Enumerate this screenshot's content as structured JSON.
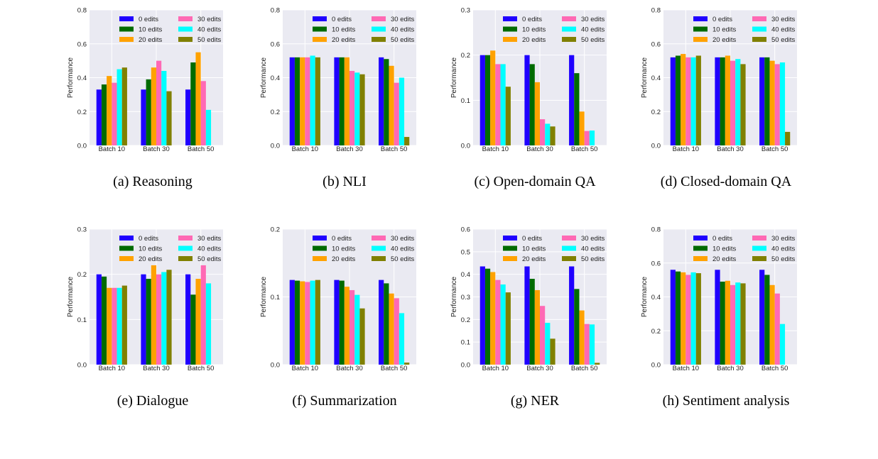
{
  "colors": [
    "#1f00ff",
    "#006b00",
    "#ffa200",
    "#ff69b4",
    "#00ffff",
    "#808000"
  ],
  "chart_data": [
    {
      "type": "bar",
      "caption": "(a) Reasoning",
      "ylabel": "Performance",
      "ylim": [
        0,
        0.8
      ],
      "yticks": [
        "0.0",
        "0.2",
        "0.4",
        "0.6",
        "0.8"
      ],
      "categories": [
        "Batch 10",
        "Batch 30",
        "Batch 50"
      ],
      "legend": "top-right",
      "grid": true,
      "series": [
        {
          "name": "0 edits",
          "values": [
            0.33,
            0.33,
            0.33
          ]
        },
        {
          "name": "10 edits",
          "values": [
            0.36,
            0.39,
            0.49
          ]
        },
        {
          "name": "20 edits",
          "values": [
            0.41,
            0.46,
            0.55
          ]
        },
        {
          "name": "30 edits",
          "values": [
            0.37,
            0.5,
            0.38
          ]
        },
        {
          "name": "40 edits",
          "values": [
            0.45,
            0.44,
            0.21
          ]
        },
        {
          "name": "50 edits",
          "values": [
            0.46,
            0.32,
            0.0
          ]
        }
      ]
    },
    {
      "type": "bar",
      "caption": "(b) NLI",
      "ylabel": "Performance",
      "ylim": [
        0,
        0.8
      ],
      "yticks": [
        "0.0",
        "0.2",
        "0.4",
        "0.6",
        "0.8"
      ],
      "categories": [
        "Batch 10",
        "Batch 30",
        "Batch 50"
      ],
      "legend": "top-right",
      "grid": true,
      "series": [
        {
          "name": "0 edits",
          "values": [
            0.52,
            0.52,
            0.52
          ]
        },
        {
          "name": "10 edits",
          "values": [
            0.52,
            0.52,
            0.51
          ]
        },
        {
          "name": "20 edits",
          "values": [
            0.52,
            0.52,
            0.47
          ]
        },
        {
          "name": "30 edits",
          "values": [
            0.52,
            0.44,
            0.37
          ]
        },
        {
          "name": "40 edits",
          "values": [
            0.53,
            0.43,
            0.4
          ]
        },
        {
          "name": "50 edits",
          "values": [
            0.52,
            0.42,
            0.05
          ]
        }
      ]
    },
    {
      "type": "bar",
      "caption": "(c) Open-domain QA",
      "ylabel": "Performance",
      "ylim": [
        0,
        0.3
      ],
      "yticks": [
        "0.0",
        "0.1",
        "0.2",
        "0.3"
      ],
      "categories": [
        "Batch 10",
        "Batch 30",
        "Batch 50"
      ],
      "legend": "top-right",
      "grid": true,
      "series": [
        {
          "name": "0 edits",
          "values": [
            0.2,
            0.2,
            0.2
          ]
        },
        {
          "name": "10 edits",
          "values": [
            0.2,
            0.18,
            0.16
          ]
        },
        {
          "name": "20 edits",
          "values": [
            0.21,
            0.14,
            0.075
          ]
        },
        {
          "name": "30 edits",
          "values": [
            0.18,
            0.058,
            0.032
          ]
        },
        {
          "name": "40 edits",
          "values": [
            0.18,
            0.048,
            0.033
          ]
        },
        {
          "name": "50 edits",
          "values": [
            0.13,
            0.042,
            0.0
          ]
        }
      ]
    },
    {
      "type": "bar",
      "caption": "(d) Closed-domain QA",
      "ylabel": "Performance",
      "ylim": [
        0,
        0.8
      ],
      "yticks": [
        "0.0",
        "0.2",
        "0.4",
        "0.6",
        "0.8"
      ],
      "categories": [
        "Batch 10",
        "Batch 30",
        "Batch 50"
      ],
      "legend": "top-right",
      "grid": true,
      "series": [
        {
          "name": "0 edits",
          "values": [
            0.52,
            0.52,
            0.52
          ]
        },
        {
          "name": "10 edits",
          "values": [
            0.53,
            0.52,
            0.52
          ]
        },
        {
          "name": "20 edits",
          "values": [
            0.54,
            0.53,
            0.5
          ]
        },
        {
          "name": "30 edits",
          "values": [
            0.52,
            0.5,
            0.48
          ]
        },
        {
          "name": "40 edits",
          "values": [
            0.52,
            0.51,
            0.49
          ]
        },
        {
          "name": "50 edits",
          "values": [
            0.53,
            0.48,
            0.08
          ]
        }
      ]
    },
    {
      "type": "bar",
      "caption": "(e) Dialogue",
      "ylabel": "Performance",
      "ylim": [
        0,
        0.3
      ],
      "yticks": [
        "0.0",
        "0.1",
        "0.2",
        "0.3"
      ],
      "categories": [
        "Batch 10",
        "Batch 30",
        "Batch 50"
      ],
      "legend": "top-right",
      "grid": true,
      "series": [
        {
          "name": "0 edits",
          "values": [
            0.2,
            0.2,
            0.2
          ]
        },
        {
          "name": "10 edits",
          "values": [
            0.195,
            0.19,
            0.155
          ]
        },
        {
          "name": "20 edits",
          "values": [
            0.17,
            0.22,
            0.19
          ]
        },
        {
          "name": "30 edits",
          "values": [
            0.17,
            0.2,
            0.22
          ]
        },
        {
          "name": "40 edits",
          "values": [
            0.17,
            0.205,
            0.18
          ]
        },
        {
          "name": "50 edits",
          "values": [
            0.175,
            0.21,
            0.0
          ]
        }
      ]
    },
    {
      "type": "bar",
      "caption": "(f) Summarization",
      "ylabel": "Performance",
      "ylim": [
        0,
        0.2
      ],
      "yticks": [
        "0.0",
        "0.1",
        "0.2"
      ],
      "categories": [
        "Batch 10",
        "Batch 30",
        "Batch 50"
      ],
      "legend": "top-right",
      "grid": true,
      "series": [
        {
          "name": "0 edits",
          "values": [
            0.125,
            0.125,
            0.125
          ]
        },
        {
          "name": "10 edits",
          "values": [
            0.124,
            0.124,
            0.12
          ]
        },
        {
          "name": "20 edits",
          "values": [
            0.123,
            0.115,
            0.105
          ]
        },
        {
          "name": "30 edits",
          "values": [
            0.122,
            0.11,
            0.098
          ]
        },
        {
          "name": "40 edits",
          "values": [
            0.124,
            0.103,
            0.076
          ]
        },
        {
          "name": "50 edits",
          "values": [
            0.125,
            0.083,
            0.003
          ]
        }
      ]
    },
    {
      "type": "bar",
      "caption": "(g) NER",
      "ylabel": "Performance",
      "ylim": [
        0,
        0.6
      ],
      "yticks": [
        "0.0",
        "0.1",
        "0.2",
        "0.3",
        "0.4",
        "0.5",
        "0.6"
      ],
      "categories": [
        "Batch 10",
        "Batch 30",
        "Batch 50"
      ],
      "legend": "top-right",
      "grid": true,
      "series": [
        {
          "name": "0 edits",
          "values": [
            0.435,
            0.435,
            0.435
          ]
        },
        {
          "name": "10 edits",
          "values": [
            0.425,
            0.38,
            0.335
          ]
        },
        {
          "name": "20 edits",
          "values": [
            0.41,
            0.33,
            0.24
          ]
        },
        {
          "name": "30 edits",
          "values": [
            0.375,
            0.26,
            0.18
          ]
        },
        {
          "name": "40 edits",
          "values": [
            0.355,
            0.185,
            0.178
          ]
        },
        {
          "name": "50 edits",
          "values": [
            0.32,
            0.115,
            0.008
          ]
        }
      ]
    },
    {
      "type": "bar",
      "caption": "(h) Sentiment analysis",
      "ylabel": "Performance",
      "ylim": [
        0,
        0.8
      ],
      "yticks": [
        "0.0",
        "0.2",
        "0.4",
        "0.6",
        "0.8"
      ],
      "categories": [
        "Batch 10",
        "Batch 30",
        "Batch 50"
      ],
      "legend": "top-right",
      "grid": true,
      "series": [
        {
          "name": "0 edits",
          "values": [
            0.56,
            0.56,
            0.56
          ]
        },
        {
          "name": "10 edits",
          "values": [
            0.55,
            0.49,
            0.53
          ]
        },
        {
          "name": "20 edits",
          "values": [
            0.545,
            0.495,
            0.47
          ]
        },
        {
          "name": "30 edits",
          "values": [
            0.53,
            0.47,
            0.42
          ]
        },
        {
          "name": "40 edits",
          "values": [
            0.545,
            0.485,
            0.24
          ]
        },
        {
          "name": "50 edits",
          "values": [
            0.54,
            0.48,
            0.0
          ]
        }
      ]
    }
  ]
}
